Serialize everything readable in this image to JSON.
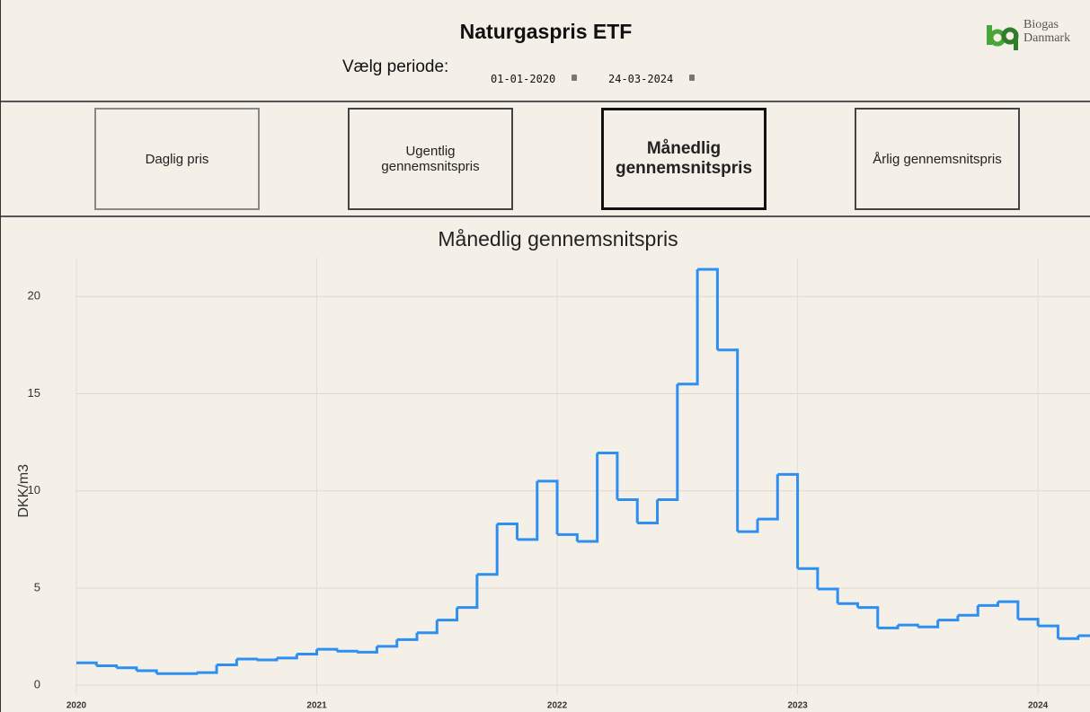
{
  "header": {
    "title": "Naturgaspris ETF",
    "period_label": "Vælg periode:",
    "start_date": "01-01-2020",
    "end_date": "24-03-2024",
    "logo": [
      "Biogas",
      "Danmark"
    ]
  },
  "buttons": {
    "labels": [
      "Daglig pris",
      "Ugentlig gennemsnitspris",
      "Månedlig gennemsnitspris",
      "Årlig gennemsnitspris"
    ],
    "active": 2
  },
  "chart_data": {
    "type": "line",
    "line_shape": "step",
    "title": "Månedlig gennemsnitspris",
    "y_label": "DKK/m3",
    "grid": true,
    "x": [
      "2020-01",
      "2020-02",
      "2020-03",
      "2020-04",
      "2020-05",
      "2020-06",
      "2020-07",
      "2020-08",
      "2020-09",
      "2020-10",
      "2020-11",
      "2020-12",
      "2021-01",
      "2021-02",
      "2021-03",
      "2021-04",
      "2021-05",
      "2021-06",
      "2021-07",
      "2021-08",
      "2021-09",
      "2021-10",
      "2021-11",
      "2021-12",
      "2022-01",
      "2022-02",
      "2022-03",
      "2022-04",
      "2022-05",
      "2022-06",
      "2022-07",
      "2022-08",
      "2022-09",
      "2022-10",
      "2022-11",
      "2022-12",
      "2023-01",
      "2023-02",
      "2023-03",
      "2023-04",
      "2023-05",
      "2023-06",
      "2023-07",
      "2023-08",
      "2023-09",
      "2023-10",
      "2023-11",
      "2023-12",
      "2024-01",
      "2024-02",
      "2024-03"
    ],
    "series": [
      {
        "name": "Månedlig gennemsnitspris",
        "color": "#2e8ff0",
        "values": [
          1.15,
          1.0,
          0.9,
          0.75,
          0.6,
          0.6,
          0.65,
          1.05,
          1.35,
          1.3,
          1.4,
          1.6,
          1.85,
          1.75,
          1.7,
          2.0,
          2.35,
          2.7,
          3.35,
          4.0,
          5.7,
          8.3,
          7.5,
          10.5,
          7.75,
          7.4,
          11.95,
          9.55,
          8.35,
          9.55,
          15.5,
          21.4,
          17.25,
          7.9,
          8.55,
          10.85,
          6.0,
          4.95,
          4.2,
          4.0,
          2.95,
          3.1,
          3.0,
          3.35,
          3.6,
          4.1,
          4.3,
          3.4,
          3.05,
          2.4,
          2.55
        ]
      }
    ],
    "xlim": [
      "2020-01",
      "2024-04"
    ],
    "xticks": [
      {
        "value": "2020-01",
        "label": "2020"
      },
      {
        "value": "2021-01",
        "label": "2021"
      },
      {
        "value": "2022-01",
        "label": "2022"
      },
      {
        "value": "2023-01",
        "label": "2023"
      },
      {
        "value": "2024-01",
        "label": "2024"
      }
    ],
    "ylim": [
      -0.5,
      22
    ],
    "yticks": [
      0,
      5,
      10,
      15,
      20
    ]
  }
}
